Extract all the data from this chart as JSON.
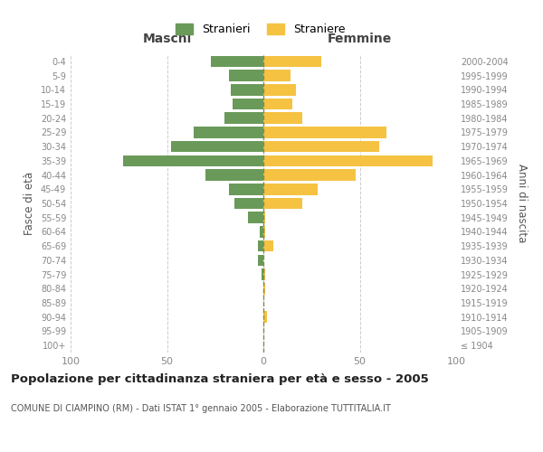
{
  "age_groups": [
    "100+",
    "95-99",
    "90-94",
    "85-89",
    "80-84",
    "75-79",
    "70-74",
    "65-69",
    "60-64",
    "55-59",
    "50-54",
    "45-49",
    "40-44",
    "35-39",
    "30-34",
    "25-29",
    "20-24",
    "15-19",
    "10-14",
    "5-9",
    "0-4"
  ],
  "birth_years": [
    "≤ 1904",
    "1905-1909",
    "1910-1914",
    "1915-1919",
    "1920-1924",
    "1925-1929",
    "1930-1934",
    "1935-1939",
    "1940-1944",
    "1945-1949",
    "1950-1954",
    "1955-1959",
    "1960-1964",
    "1965-1969",
    "1970-1974",
    "1975-1979",
    "1980-1984",
    "1985-1989",
    "1990-1994",
    "1995-1999",
    "2000-2004"
  ],
  "maschi": [
    0,
    0,
    0,
    0,
    0,
    1,
    3,
    3,
    2,
    8,
    15,
    18,
    30,
    73,
    48,
    36,
    20,
    16,
    17,
    18,
    27
  ],
  "femmine": [
    0,
    0,
    2,
    0,
    1,
    1,
    0,
    5,
    1,
    1,
    20,
    28,
    48,
    88,
    60,
    64,
    20,
    15,
    17,
    14,
    30
  ],
  "color_maschi": "#6a9a5a",
  "color_femmine": "#f5c242",
  "color_center_line": "#888855",
  "xlim": 100,
  "title": "Popolazione per cittadinanza straniera per età e sesso - 2005",
  "subtitle": "COMUNE DI CIAMPINO (RM) - Dati ISTAT 1° gennaio 2005 - Elaborazione TUTTITALIA.IT",
  "xlabel_left": "Maschi",
  "xlabel_right": "Femmine",
  "ylabel_left": "Fasce di età",
  "ylabel_right": "Anni di nascita",
  "legend_maschi": "Stranieri",
  "legend_femmine": "Straniere",
  "bg_color": "#ffffff",
  "grid_color": "#cccccc"
}
